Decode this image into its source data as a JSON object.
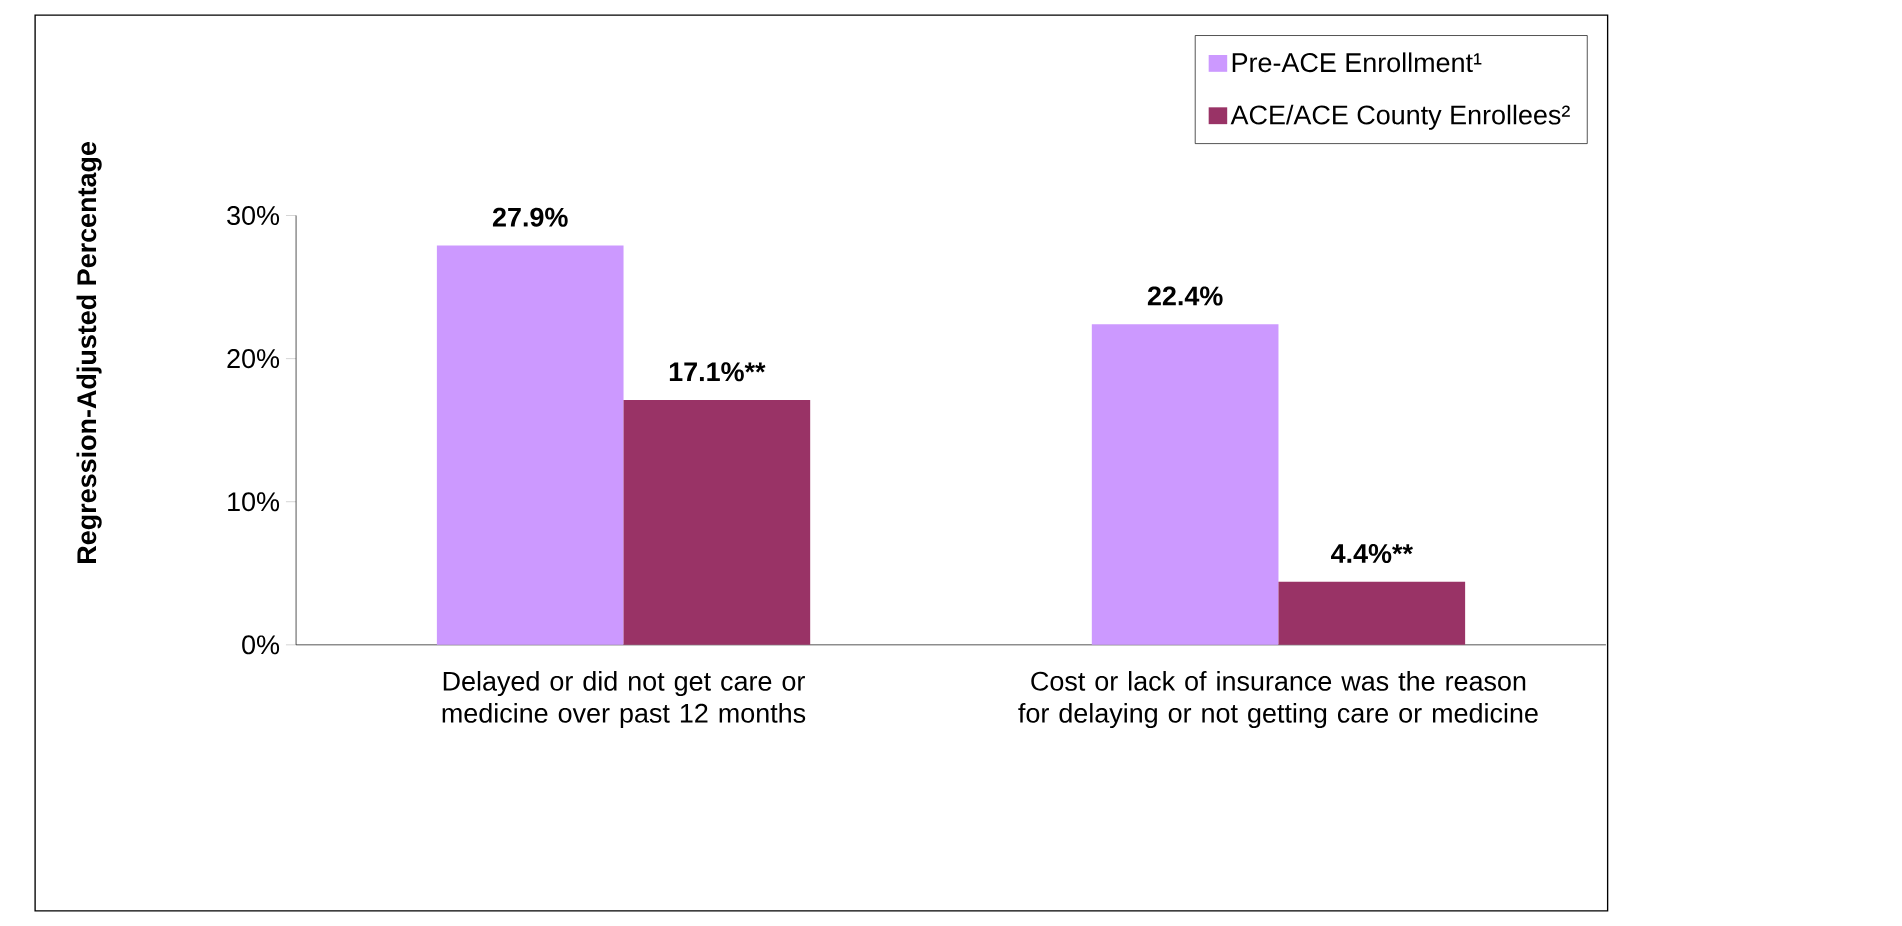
{
  "chart_data": {
    "type": "bar",
    "ylabel": "Regression-Adjusted Percentage",
    "categories": [
      "Delayed or did not get care or medicine over past 12 months",
      "Cost or lack of insurance was the reason for delaying or not getting care or medicine"
    ],
    "series": [
      {
        "name": "Pre-ACE Enrollment¹",
        "color": "#cc99ff",
        "values": [
          27.9,
          22.4
        ],
        "value_labels": [
          "27.9%",
          "22.4%"
        ]
      },
      {
        "name": "ACE/ACE County Enrollees²",
        "color": "#993366",
        "values": [
          17.1,
          4.4
        ],
        "value_labels": [
          "17.1%**",
          "4.4%**"
        ]
      }
    ],
    "ylim": [
      0,
      30
    ],
    "yticks": [
      {
        "value": 0,
        "label": "0%"
      },
      {
        "value": 10,
        "label": "10%"
      },
      {
        "value": 20,
        "label": "20%"
      },
      {
        "value": 30,
        "label": "30%"
      }
    ],
    "legend": "top right"
  }
}
